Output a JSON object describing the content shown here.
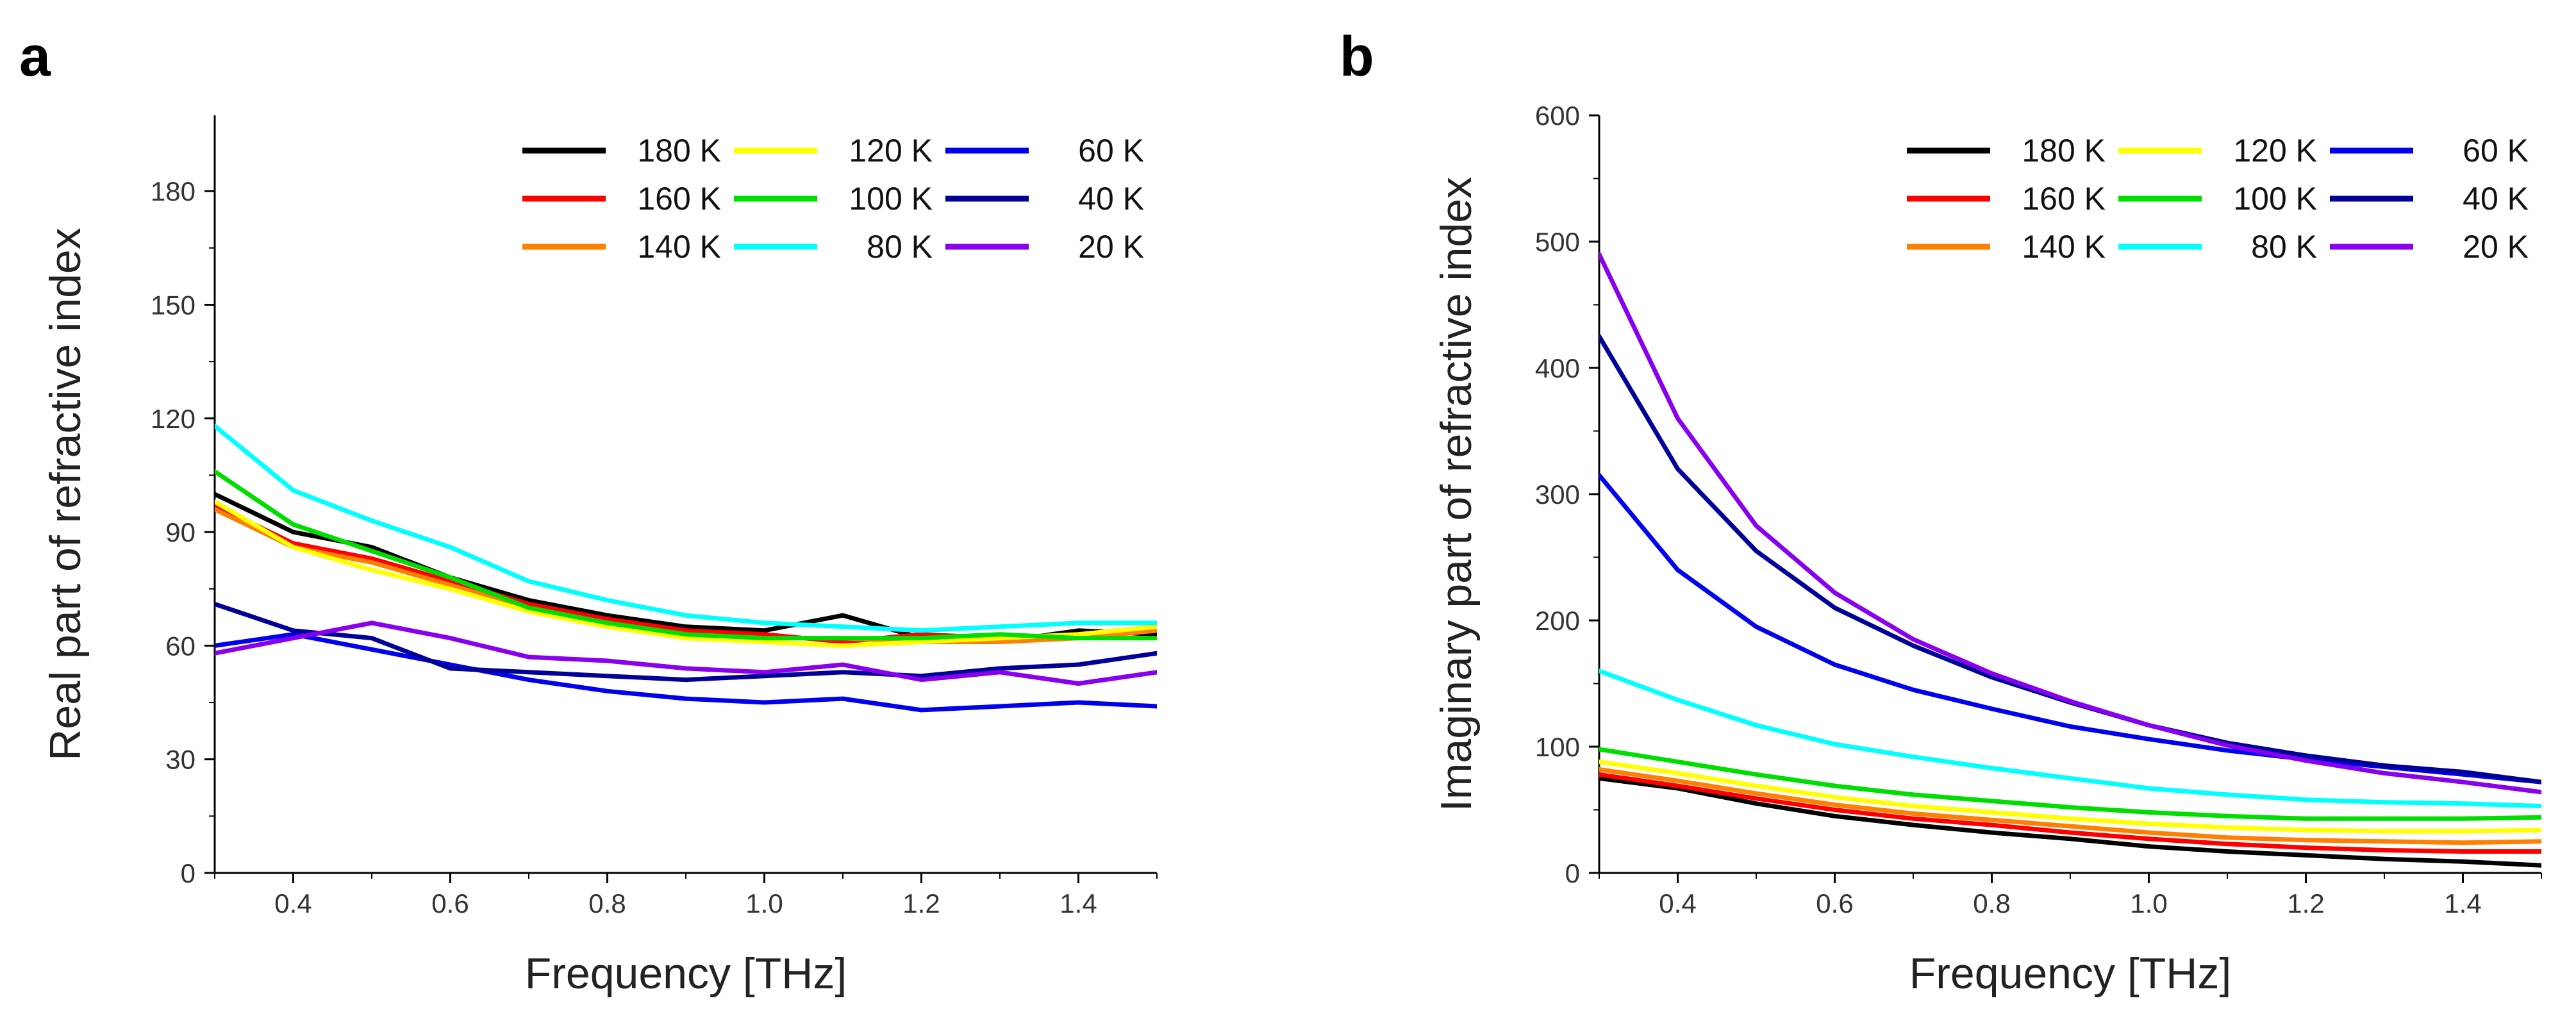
{
  "chart_data": [
    {
      "type": "line",
      "panel_label": "a",
      "title": "",
      "xlabel": "Frequency [THz]",
      "ylabel": "Real part of refractive index",
      "xlim": [
        0.3,
        1.5
      ],
      "ylim": [
        0,
        200
      ],
      "xticks": [
        0.4,
        0.6,
        0.8,
        1.0,
        1.2,
        1.4
      ],
      "xtick_labels": [
        "0.4",
        "0.6",
        "0.8",
        "1.0",
        "1.2",
        "1.4"
      ],
      "yticks": [
        0,
        30,
        60,
        90,
        120,
        150,
        180
      ],
      "ytick_labels": [
        "0",
        "30",
        "60",
        "90",
        "120",
        "150",
        "180"
      ],
      "legend_position": "top-right",
      "grid": false,
      "x": [
        0.3,
        0.4,
        0.5,
        0.6,
        0.7,
        0.8,
        0.9,
        1.0,
        1.1,
        1.2,
        1.3,
        1.4,
        1.5
      ],
      "series": [
        {
          "name": "180 K",
          "color": "#000000",
          "values": [
            100,
            90,
            86,
            78,
            72,
            68,
            65,
            64,
            68,
            62,
            61,
            64,
            63
          ]
        },
        {
          "name": "160 K",
          "color": "#ff0000",
          "values": [
            97,
            87,
            83,
            77,
            71,
            67,
            64,
            63,
            61,
            63,
            62,
            63,
            65
          ]
        },
        {
          "name": "140 K",
          "color": "#ff8000",
          "values": [
            96,
            86,
            82,
            76,
            70,
            66,
            63,
            62,
            62,
            61,
            61,
            62,
            64
          ]
        },
        {
          "name": "120 K",
          "color": "#ffff00",
          "values": [
            98,
            86,
            80,
            75,
            69,
            65,
            62,
            61,
            60,
            61,
            62,
            63,
            65
          ]
        },
        {
          "name": "100 K",
          "color": "#00dd00",
          "values": [
            106,
            92,
            85,
            78,
            70,
            66,
            63,
            62,
            62,
            62,
            63,
            62,
            62
          ]
        },
        {
          "name": "80  K",
          "color": "#00ffff",
          "values": [
            118,
            101,
            93,
            86,
            77,
            72,
            68,
            66,
            65,
            64,
            65,
            66,
            66
          ]
        },
        {
          "name": "60 K",
          "color": "#0000ee",
          "values": [
            60,
            63,
            59,
            55,
            51,
            48,
            46,
            45,
            46,
            43,
            44,
            45,
            44
          ]
        },
        {
          "name": "40 K",
          "color": "#000099",
          "values": [
            71,
            64,
            62,
            54,
            53,
            52,
            51,
            52,
            53,
            52,
            54,
            55,
            58
          ]
        },
        {
          "name": "20 K",
          "color": "#8800ee",
          "values": [
            58,
            62,
            66,
            62,
            57,
            56,
            54,
            53,
            55,
            51,
            53,
            50,
            53
          ]
        }
      ]
    },
    {
      "type": "line",
      "panel_label": "b",
      "title": "",
      "xlabel": "Frequency [THz]",
      "ylabel": "Imaginary part of refractive index",
      "xlim": [
        0.3,
        1.5
      ],
      "ylim": [
        0,
        600
      ],
      "xticks": [
        0.4,
        0.6,
        0.8,
        1.0,
        1.2,
        1.4
      ],
      "xtick_labels": [
        "0.4",
        "0.6",
        "0.8",
        "1.0",
        "1.2",
        "1.4"
      ],
      "yticks": [
        0,
        100,
        200,
        300,
        400,
        500,
        600
      ],
      "ytick_labels": [
        "0",
        "100",
        "200",
        "300",
        "400",
        "500",
        "600"
      ],
      "legend_position": "top-right",
      "grid": false,
      "x": [
        0.3,
        0.4,
        0.5,
        0.6,
        0.7,
        0.8,
        0.9,
        1.0,
        1.1,
        1.2,
        1.3,
        1.4,
        1.5
      ],
      "series": [
        {
          "name": "180 K",
          "color": "#000000",
          "values": [
            75,
            67,
            55,
            45,
            38,
            32,
            27,
            21,
            17,
            14,
            11,
            9,
            6
          ]
        },
        {
          "name": "160 K",
          "color": "#ff0000",
          "values": [
            78,
            69,
            59,
            50,
            43,
            38,
            32,
            27,
            23,
            20,
            18,
            17,
            17
          ]
        },
        {
          "name": "140 K",
          "color": "#ff8000",
          "values": [
            82,
            73,
            63,
            54,
            47,
            42,
            37,
            32,
            28,
            26,
            25,
            24,
            25
          ]
        },
        {
          "name": "120 K",
          "color": "#ffff00",
          "values": [
            88,
            79,
            69,
            60,
            53,
            48,
            43,
            39,
            36,
            34,
            33,
            33,
            34
          ]
        },
        {
          "name": "100 K",
          "color": "#00dd00",
          "values": [
            98,
            88,
            78,
            69,
            62,
            57,
            52,
            48,
            45,
            43,
            43,
            43,
            44
          ]
        },
        {
          "name": "80  K",
          "color": "#00ffff",
          "values": [
            160,
            137,
            117,
            102,
            92,
            83,
            75,
            67,
            62,
            58,
            56,
            55,
            53
          ]
        },
        {
          "name": "60 K",
          "color": "#0000ee",
          "values": [
            315,
            240,
            195,
            165,
            145,
            130,
            116,
            106,
            97,
            90,
            84,
            78,
            72
          ]
        },
        {
          "name": "40 K",
          "color": "#000099",
          "values": [
            425,
            320,
            255,
            210,
            180,
            155,
            135,
            117,
            103,
            93,
            85,
            80,
            72
          ]
        },
        {
          "name": "20 K",
          "color": "#8800ee",
          "values": [
            490,
            360,
            275,
            222,
            185,
            158,
            136,
            117,
            101,
            89,
            79,
            72,
            64
          ]
        }
      ]
    }
  ]
}
